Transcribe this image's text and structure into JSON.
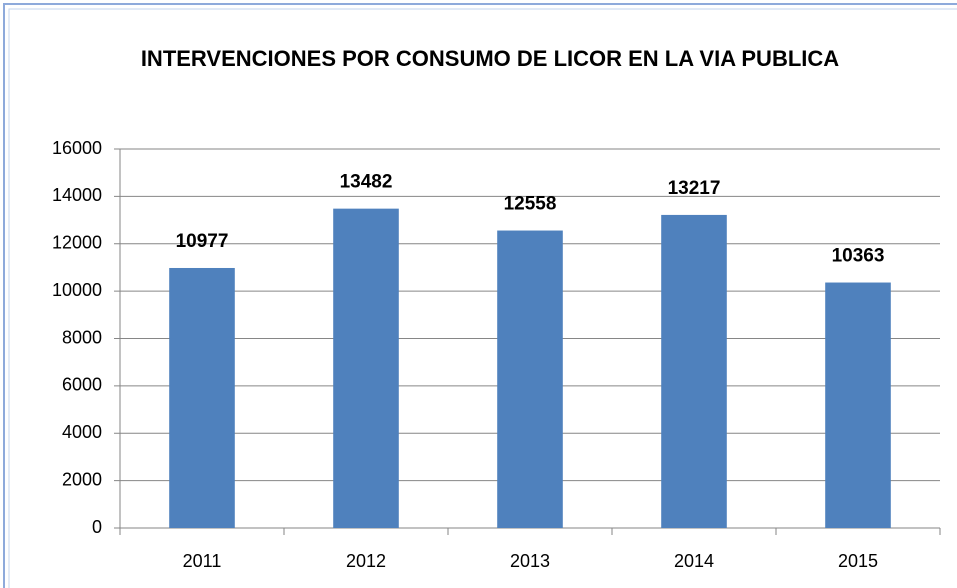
{
  "chart_data": {
    "type": "bar",
    "title": "INTERVENCIONES POR CONSUMO DE LICOR EN LA VIA PUBLICA",
    "categories": [
      "2011",
      "2012",
      "2013",
      "2014",
      "2015"
    ],
    "values": [
      10977,
      13482,
      12558,
      13217,
      10363
    ],
    "color": "#4f81bd",
    "ylim": [
      0,
      16000
    ],
    "yticks": [
      0,
      2000,
      4000,
      6000,
      8000,
      10000,
      12000,
      14000,
      16000
    ],
    "grid": true
  }
}
